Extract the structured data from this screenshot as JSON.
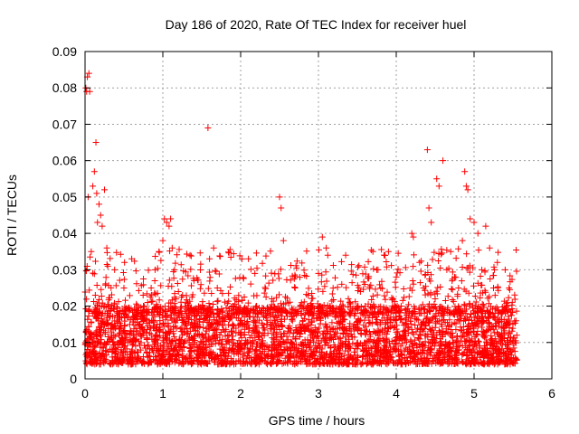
{
  "chart_data": {
    "type": "scatter",
    "title": "Day 186 of 2020, Rate Of TEC Index for receiver huel",
    "xlabel": "GPS time / hours",
    "ylabel": "ROTI / TECUs",
    "xlim": [
      0,
      6
    ],
    "ylim": [
      0,
      0.09
    ],
    "xticks": [
      "0",
      "1",
      "2",
      "3",
      "4",
      "5",
      "6"
    ],
    "yticks": [
      "0",
      "0.01",
      "0.02",
      "0.03",
      "0.04",
      "0.05",
      "0.06",
      "0.07",
      "0.08",
      "0.09"
    ],
    "grid": true,
    "marker": "+",
    "color": "#ff0000",
    "series": [
      {
        "x": [
          0.01,
          0.02,
          0.03,
          0.05,
          0.06,
          0.04,
          0.08,
          0.1,
          0.12,
          0.14,
          0.15,
          0.16,
          0.18,
          0.2,
          0.22,
          0.25,
          0.28,
          0.3,
          0.35,
          0.37,
          0.38,
          0.4,
          0.45,
          0.5,
          0.55,
          0.6,
          0.62,
          0.65,
          0.7,
          0.75,
          0.8,
          0.85,
          0.9,
          0.95,
          1.0,
          1.02,
          1.05,
          1.08,
          1.1,
          1.12,
          1.15,
          1.2,
          1.25,
          1.3,
          1.35,
          1.4,
          1.45,
          1.5,
          1.58,
          1.6,
          1.65,
          1.7,
          1.8,
          1.9,
          2.0,
          2.1,
          2.2,
          2.3,
          2.4,
          2.5,
          2.52,
          2.55,
          2.6,
          2.7,
          2.8,
          2.9,
          3.0,
          3.05,
          3.1,
          3.12,
          3.15,
          3.2,
          3.3,
          3.35,
          3.4,
          3.5,
          3.6,
          3.7,
          3.75,
          3.8,
          3.9,
          4.0,
          4.1,
          4.2,
          4.22,
          4.3,
          4.35,
          4.4,
          4.42,
          4.45,
          4.5,
          4.52,
          4.55,
          4.6,
          4.65,
          4.7,
          4.75,
          4.8,
          4.85,
          4.88,
          4.9,
          4.92,
          4.95,
          5.0,
          5.05,
          5.1,
          5.15,
          5.2,
          5.25,
          5.3,
          5.35,
          5.4,
          5.45,
          5.5,
          5.55
        ],
        "y": [
          0.08,
          0.079,
          0.083,
          0.084,
          0.079,
          0.05,
          0.035,
          0.053,
          0.057,
          0.065,
          0.051,
          0.043,
          0.048,
          0.045,
          0.042,
          0.052,
          0.036,
          0.02,
          0.015,
          0.012,
          0.03,
          0.008,
          0.018,
          0.025,
          0.01,
          0.033,
          0.012,
          0.009,
          0.015,
          0.02,
          0.011,
          0.025,
          0.03,
          0.035,
          0.038,
          0.044,
          0.043,
          0.042,
          0.044,
          0.036,
          0.03,
          0.024,
          0.012,
          0.018,
          0.034,
          0.027,
          0.015,
          0.01,
          0.069,
          0.033,
          0.018,
          0.025,
          0.013,
          0.02,
          0.012,
          0.033,
          0.02,
          0.014,
          0.022,
          0.05,
          0.047,
          0.038,
          0.018,
          0.025,
          0.016,
          0.012,
          0.029,
          0.039,
          0.036,
          0.034,
          0.02,
          0.012,
          0.026,
          0.034,
          0.018,
          0.015,
          0.02,
          0.035,
          0.03,
          0.025,
          0.035,
          0.028,
          0.012,
          0.04,
          0.039,
          0.032,
          0.025,
          0.063,
          0.047,
          0.043,
          0.022,
          0.055,
          0.053,
          0.06,
          0.03,
          0.035,
          0.028,
          0.025,
          0.038,
          0.057,
          0.053,
          0.052,
          0.044,
          0.043,
          0.04,
          0.03,
          0.042,
          0.036,
          0.025,
          0.032,
          0.018,
          0.03,
          0.025,
          0.015,
          0.012
        ]
      }
    ],
    "band": {
      "description": "dense cloud of points between roughly 0.004 and 0.02 TECU/s over 0 to 5.55 hours",
      "xmin": 0.0,
      "xmax": 5.55,
      "ymin": 0.004,
      "ymax": 0.02
    }
  }
}
